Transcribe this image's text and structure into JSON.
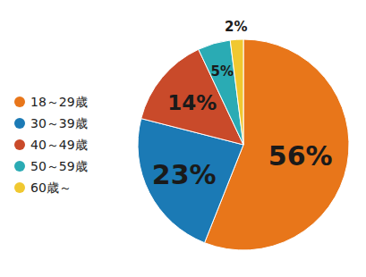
{
  "chart_data": {
    "type": "pie",
    "categories": [
      "18～29歳",
      "30～39歳",
      "40～49歳",
      "50～59歳",
      "60歳～"
    ],
    "values": [
      56,
      23,
      14,
      5,
      2
    ],
    "value_labels": [
      "56%",
      "23%",
      "14%",
      "5%",
      "2%"
    ],
    "colors": [
      "#E8761A",
      "#1B7AB5",
      "#C94A2A",
      "#2AABB4",
      "#F0C830"
    ],
    "data_labels": true,
    "legend": "left"
  }
}
